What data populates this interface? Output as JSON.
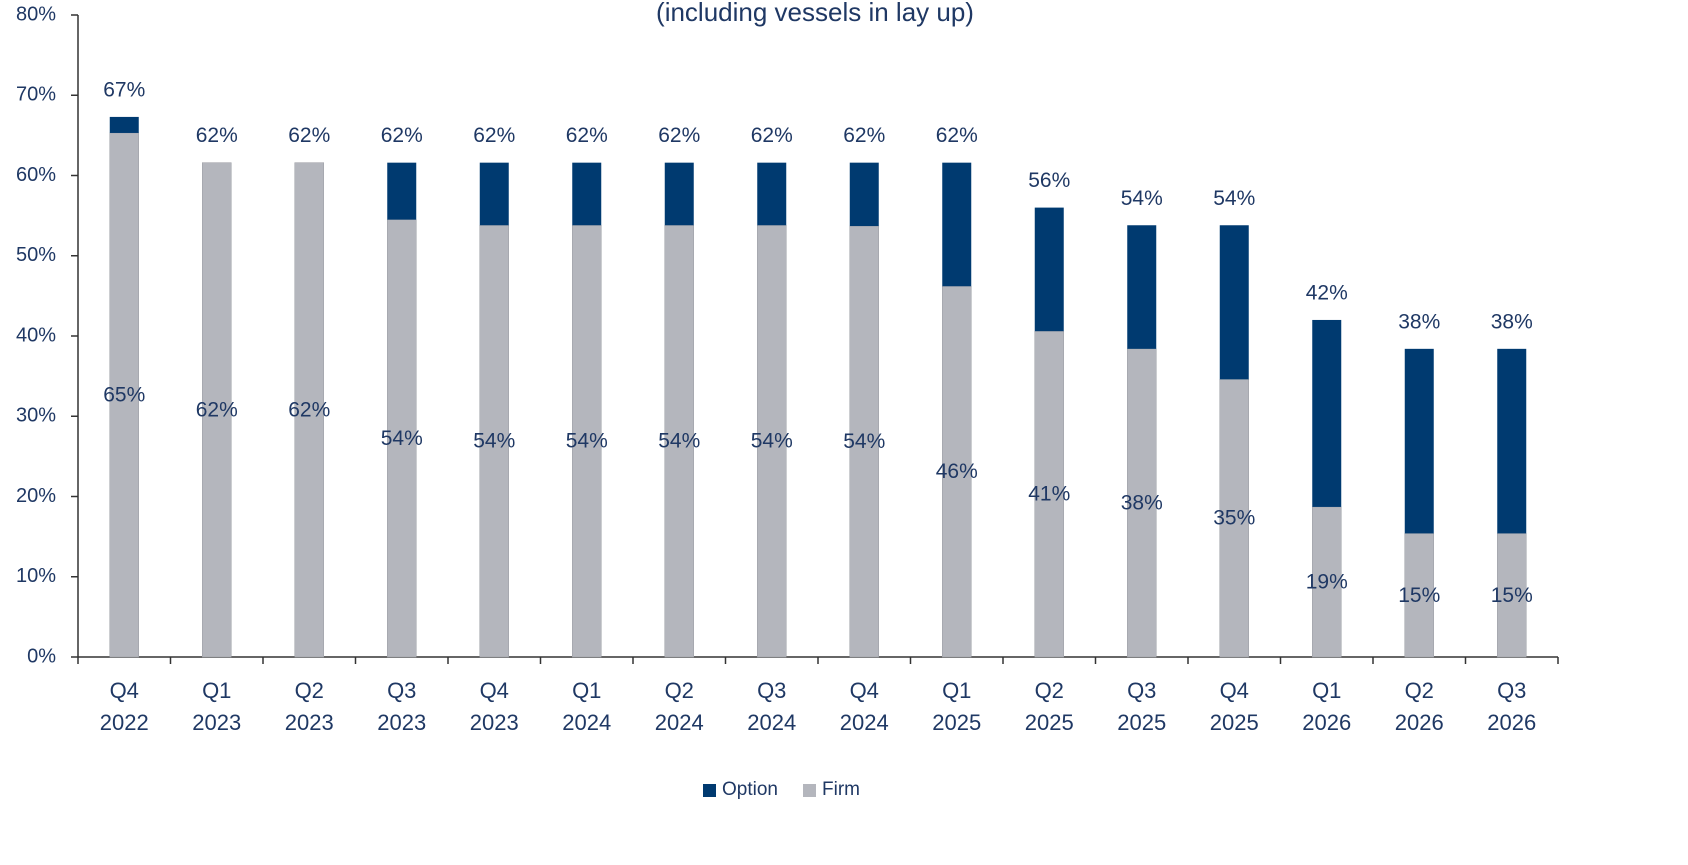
{
  "chart_data": {
    "type": "stacked_bar",
    "title": "(including vessels in lay up)",
    "categories": [
      "Q4 2022",
      "Q1 2023",
      "Q2 2023",
      "Q3 2023",
      "Q4 2023",
      "Q1 2024",
      "Q2 2024",
      "Q3 2024",
      "Q4 2024",
      "Q1 2025",
      "Q2 2025",
      "Q3 2025",
      "Q4 2025",
      "Q1 2026",
      "Q2 2026",
      "Q3 2026"
    ],
    "series": [
      {
        "name": "Firm",
        "color": "#b4b6bd",
        "values": [
          65.3,
          61.6,
          61.6,
          54.5,
          53.8,
          53.8,
          53.8,
          53.8,
          53.7,
          46.2,
          40.6,
          38.4,
          34.6,
          18.7,
          15.4,
          15.4
        ],
        "value_labels": [
          "65%",
          "62%",
          "62%",
          "54%",
          "54%",
          "54%",
          "54%",
          "54%",
          "54%",
          "46%",
          "41%",
          "38%",
          "35%",
          "19%",
          "15%",
          "15%"
        ]
      },
      {
        "name": "Option",
        "color": "#003a70",
        "values": [
          2.0,
          0,
          0,
          7.1,
          7.8,
          7.8,
          7.8,
          7.8,
          7.9,
          15.4,
          15.4,
          15.4,
          19.2,
          23.3,
          23.0,
          23.0
        ]
      }
    ],
    "totals": [
      67.3,
      61.6,
      61.6,
      61.6,
      61.6,
      61.6,
      61.6,
      61.6,
      61.6,
      61.6,
      56.0,
      53.8,
      53.8,
      42.0,
      38.4,
      38.4
    ],
    "total_labels": [
      "67%",
      "62%",
      "62%",
      "62%",
      "62%",
      "62%",
      "62%",
      "62%",
      "62%",
      "62%",
      "56%",
      "54%",
      "54%",
      "42%",
      "38%",
      "38%"
    ],
    "ylim": [
      0,
      80
    ],
    "yticks": [
      {
        "value": 0,
        "label": "0%"
      },
      {
        "value": 10,
        "label": "10%"
      },
      {
        "value": 20,
        "label": "20%"
      },
      {
        "value": 30,
        "label": "30%"
      },
      {
        "value": 40,
        "label": "40%"
      },
      {
        "value": 50,
        "label": "50%"
      },
      {
        "value": 60,
        "label": "60%"
      },
      {
        "value": 70,
        "label": "70%"
      },
      {
        "value": 80,
        "label": "80%"
      }
    ],
    "legend": "bottom"
  }
}
